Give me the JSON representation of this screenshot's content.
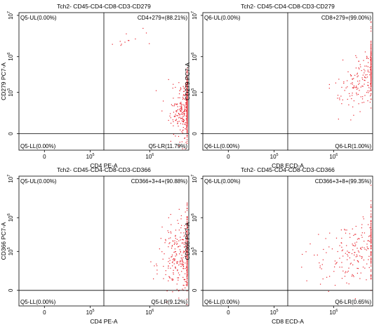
{
  "chart_data": [
    {
      "type": "scatter",
      "title": "Tch2- CD45-CD4-CD8-CD3-CD279",
      "xlabel": "CD4 PE-A",
      "ylabel": "CD279 PC7-A",
      "xscale": "log",
      "yscale": "log",
      "x_tick_labels": [
        "0",
        "10",
        "10"
      ],
      "x_tick_exponents": [
        "",
        "5",
        "6"
      ],
      "y_tick_labels": [
        "0",
        "10",
        "10",
        "10"
      ],
      "y_tick_exponents": [
        "",
        "5",
        "6",
        "7"
      ],
      "quadrant_gate": {
        "x": 0.5,
        "y": 0.12
      },
      "quadrants": {
        "UL": "Q5-UL(0.00%)",
        "UR": "CD4+279+(88.21%)",
        "LL": "Q5-LL(0.00%)",
        "LR": "Q5-LR(11.79%)"
      },
      "point_color": "#e8202a",
      "clusters": [
        {
          "x": 1.03,
          "y": 0.32,
          "sx": 0.06,
          "sy": 0.1,
          "n": 720
        },
        {
          "x": 0.65,
          "y": 0.8,
          "sx": 0.04,
          "sy": 0.03,
          "n": 12
        }
      ]
    },
    {
      "type": "scatter",
      "title": "Tch2- CD45-CD4-CD8-CD3-CD279",
      "xlabel": "CD8 ECD-A",
      "ylabel": "CD279 PC7-A",
      "xscale": "log",
      "yscale": "log",
      "x_tick_labels": [
        "0",
        "10",
        "10"
      ],
      "x_tick_exponents": [
        "",
        "5",
        "6"
      ],
      "y_tick_labels": [
        "0",
        "10",
        "10",
        "10"
      ],
      "y_tick_exponents": [
        "",
        "5",
        "6",
        "7"
      ],
      "quadrant_gate": {
        "x": 0.5,
        "y": 0.12
      },
      "quadrants": {
        "UL": "Q6-UL(0.00%)",
        "UR": "CD8+279+(99.00%)",
        "LL": "Q6-LL(0.00%)",
        "LR": "Q6-LR(1.00%)"
      },
      "point_color": "#e8202a",
      "clusters": [
        {
          "x": 1.0,
          "y": 0.55,
          "sx": 0.1,
          "sy": 0.12,
          "n": 300
        }
      ]
    },
    {
      "type": "scatter",
      "title": "Tch2- CD45-CD4-CD8-CD3-CD366",
      "xlabel": "CD4 PE-A",
      "ylabel": "CD366 PC7-A",
      "xscale": "log",
      "yscale": "log",
      "x_tick_labels": [
        "0",
        "10",
        "10"
      ],
      "x_tick_exponents": [
        "",
        "5",
        "6"
      ],
      "y_tick_labels": [
        "0",
        "10",
        "10",
        "10"
      ],
      "y_tick_exponents": [
        "",
        "5",
        "6",
        "7"
      ],
      "quadrant_gate": {
        "x": 0.5,
        "y": 0.12
      },
      "quadrants": {
        "UL": "Q5-UL(0.00%)",
        "UR": "CD366+3+4+(90.88%)",
        "LL": "Q5-LL(0.00%)",
        "LR": "Q5-LR(9.12%)"
      },
      "point_color": "#e8202a",
      "clusters": [
        {
          "x": 1.0,
          "y": 0.4,
          "sx": 0.08,
          "sy": 0.14,
          "n": 420
        }
      ]
    },
    {
      "type": "scatter",
      "title": "Tch2- CD45-CD4-CD8-CD3-CD366",
      "xlabel": "CD8 ECD-A",
      "ylabel": "CD366 PC7-A",
      "xscale": "log",
      "yscale": "log",
      "x_tick_labels": [
        "0",
        "10",
        "10"
      ],
      "x_tick_exponents": [
        "",
        "5",
        "6"
      ],
      "y_tick_labels": [
        "0",
        "10",
        "10",
        "10"
      ],
      "y_tick_exponents": [
        "",
        "5",
        "6",
        "7"
      ],
      "quadrant_gate": {
        "x": 0.5,
        "y": 0.12
      },
      "quadrants": {
        "UL": "Q6-UL(0.00%)",
        "UR": "CD366+3+8+(99.35%)",
        "LL": "Q6-LL(0.00%)",
        "LR": "Q6-LR(0.65%)"
      },
      "point_color": "#e8202a",
      "clusters": [
        {
          "x": 0.96,
          "y": 0.45,
          "sx": 0.14,
          "sy": 0.15,
          "n": 260
        }
      ]
    }
  ]
}
